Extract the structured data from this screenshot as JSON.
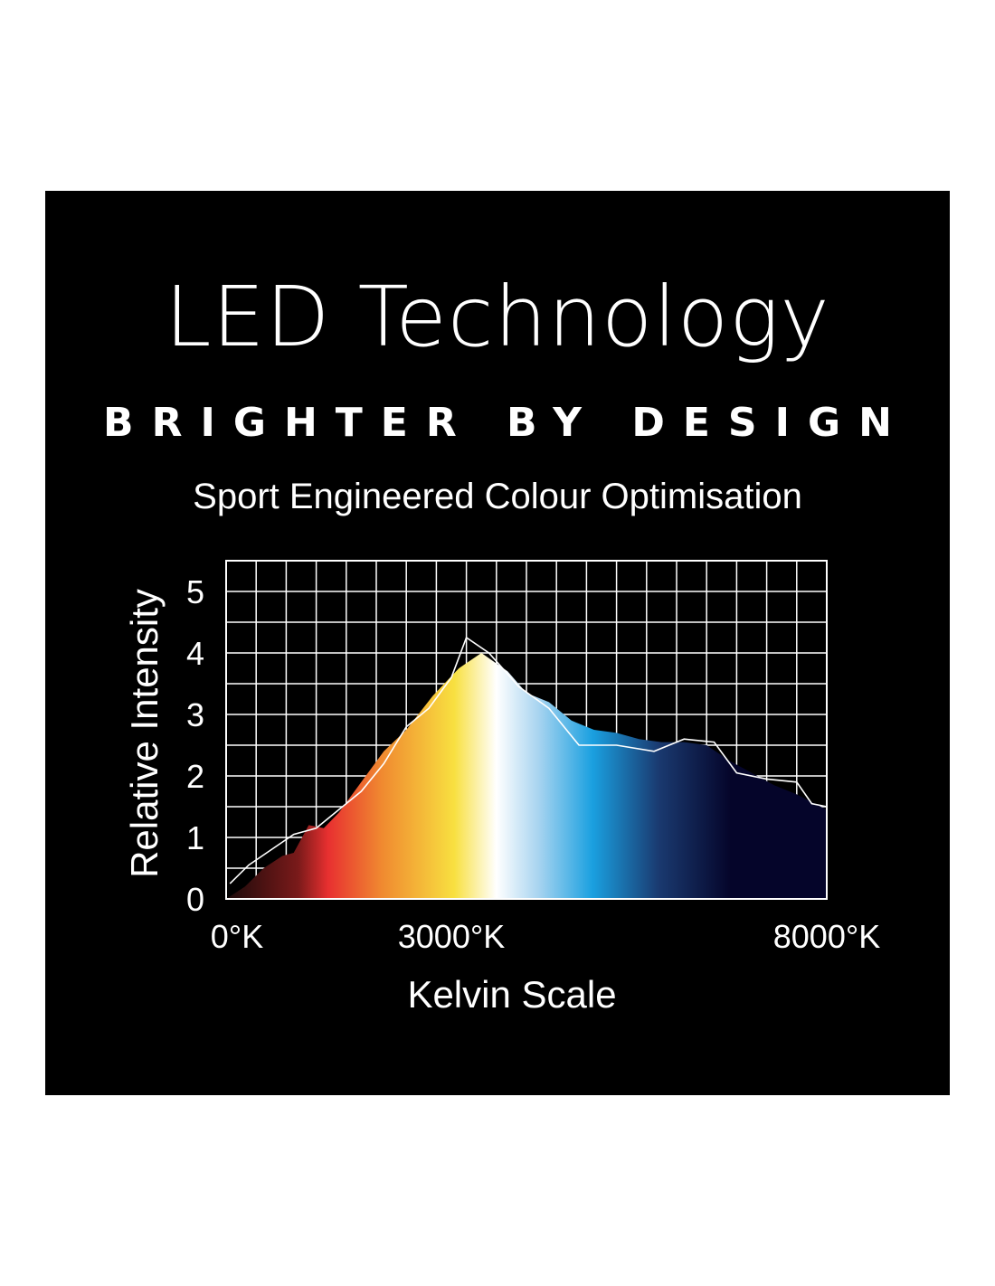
{
  "header": {
    "title": "LED Technology",
    "subtitle": "BRIGHTER BY DESIGN",
    "tagline": "Sport Engineered Colour Optimisation"
  },
  "colors": {
    "background": "#000000",
    "text": "#ffffff",
    "grid": "#ffffff",
    "spectrum": [
      "#1a0a0a",
      "#7a1a1a",
      "#e83030",
      "#f08a30",
      "#f8e040",
      "#ffffff",
      "#a8d4f0",
      "#1aa0e0",
      "#1a3a70",
      "#05052a"
    ]
  },
  "chart_data": {
    "type": "area",
    "xlabel": "Kelvin Scale",
    "ylabel": "Relative Intensity",
    "x_tick_labels": [
      {
        "x": 0,
        "label": "0°K"
      },
      {
        "x": 3000,
        "label": "3000°K"
      },
      {
        "x": 8000,
        "label": "8000°K"
      }
    ],
    "y_ticks": [
      0,
      1,
      2,
      3,
      4,
      5
    ],
    "xlim": [
      0,
      8000
    ],
    "ylim": [
      0,
      5.5
    ],
    "grid": true,
    "series": [
      {
        "style": "filled spectrum",
        "points": [
          [
            0,
            0
          ],
          [
            250,
            0.2
          ],
          [
            500,
            0.5
          ],
          [
            750,
            0.7
          ],
          [
            900,
            0.75
          ],
          [
            1100,
            1.2
          ],
          [
            1300,
            1.15
          ],
          [
            1500,
            1.4
          ],
          [
            1800,
            1.9
          ],
          [
            2100,
            2.4
          ],
          [
            2400,
            2.75
          ],
          [
            2750,
            3.3
          ],
          [
            3100,
            3.75
          ],
          [
            3400,
            4.0
          ],
          [
            3750,
            3.7
          ],
          [
            4000,
            3.35
          ],
          [
            4300,
            3.2
          ],
          [
            4600,
            2.9
          ],
          [
            4900,
            2.75
          ],
          [
            5200,
            2.7
          ],
          [
            5500,
            2.6
          ],
          [
            5800,
            2.55
          ],
          [
            6100,
            2.55
          ],
          [
            6400,
            2.5
          ],
          [
            6700,
            2.25
          ],
          [
            7000,
            2.05
          ],
          [
            7300,
            1.85
          ],
          [
            7600,
            1.7
          ],
          [
            8000,
            1.45
          ]
        ]
      },
      {
        "style": "white line",
        "points": [
          [
            50,
            0.25
          ],
          [
            300,
            0.55
          ],
          [
            600,
            0.8
          ],
          [
            900,
            1.05
          ],
          [
            1200,
            1.15
          ],
          [
            1500,
            1.45
          ],
          [
            1800,
            1.75
          ],
          [
            2100,
            2.2
          ],
          [
            2400,
            2.8
          ],
          [
            2700,
            3.1
          ],
          [
            3000,
            3.6
          ],
          [
            3200,
            4.25
          ],
          [
            3500,
            4.0
          ],
          [
            3900,
            3.45
          ],
          [
            4300,
            3.1
          ],
          [
            4700,
            2.5
          ],
          [
            5200,
            2.5
          ],
          [
            5700,
            2.4
          ],
          [
            6100,
            2.6
          ],
          [
            6500,
            2.55
          ],
          [
            6800,
            2.05
          ],
          [
            7200,
            1.95
          ],
          [
            7600,
            1.9
          ],
          [
            7800,
            1.55
          ],
          [
            8000,
            1.5
          ]
        ]
      }
    ]
  }
}
